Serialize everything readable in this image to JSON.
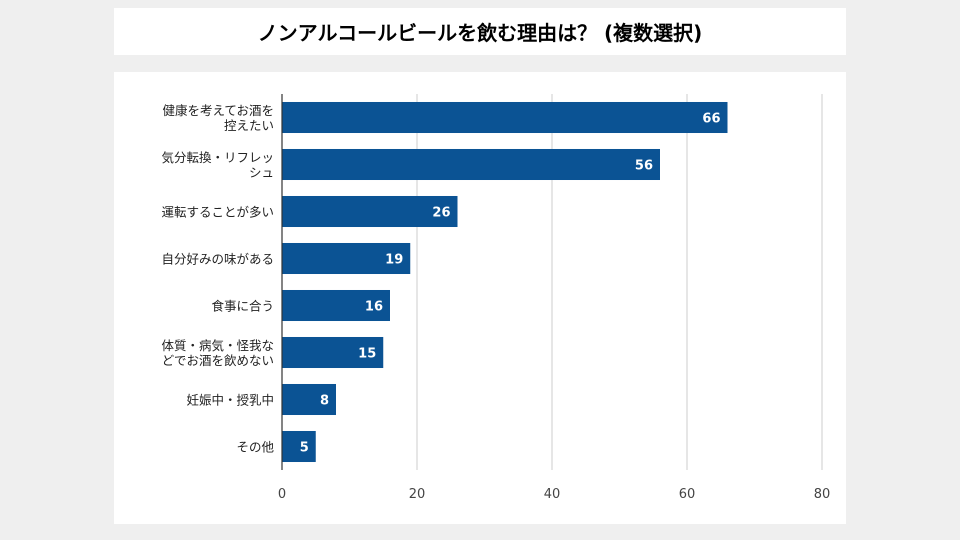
{
  "chart_data": {
    "type": "bar",
    "orientation": "horizontal",
    "title": "ノンアルコールビールを飲む理由は？ (複数選択)",
    "categories": [
      [
        "健康を考えてお酒を",
        "控えたい"
      ],
      [
        "気分転換・リフレッ",
        "シュ"
      ],
      [
        "運転することが多い"
      ],
      [
        "自分好みの味がある"
      ],
      [
        "食事に合う"
      ],
      [
        "体質・病気・怪我な",
        "どでお酒を飲めない"
      ],
      [
        "妊娠中・授乳中"
      ],
      [
        "その他"
      ]
    ],
    "values": [
      66,
      56,
      26,
      19,
      16,
      15,
      8,
      5
    ],
    "xlim": [
      0,
      80
    ],
    "xticks": [
      0,
      20,
      40,
      60,
      80
    ],
    "xlabel": "",
    "ylabel": "",
    "grid": true,
    "legend": "none",
    "bar_color": "#0b5394",
    "label_color": "#ffffff"
  }
}
